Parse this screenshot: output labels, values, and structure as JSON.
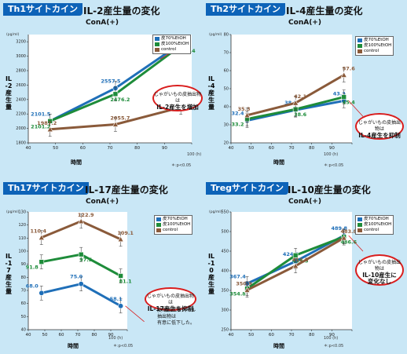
{
  "colors": {
    "blue": "#1f6fb8",
    "green": "#1e8c3a",
    "brown": "#8a5a3a",
    "red": "#d91e1e",
    "tag": "#0d63b8"
  },
  "panels": [
    {
      "tag": "Th1サイトカイン",
      "title": "IL-2産生量の変化",
      "conc": "ConA(+)",
      "ylabel": "IL-2産生量",
      "unit": "(pg/ml)",
      "xlabel": "時間",
      "xunit": "100 (h)",
      "pnote": "＊:p<0.05",
      "legend": [
        "皮70%EtOH",
        "皮100%EtOH",
        "control"
      ],
      "note": {
        "line1": "じゃがいもの皮抽出物は",
        "line2": "IL-2産生を増加"
      },
      "chart_data": {
        "type": "line",
        "x": [
          48,
          72,
          96
        ],
        "xlim": [
          40,
          100
        ],
        "xticks": [
          40,
          50,
          60,
          70,
          80,
          90,
          100
        ],
        "ylim": [
          1800,
          3300
        ],
        "yticks": [
          1800,
          2000,
          2200,
          2400,
          2600,
          2800,
          3000,
          3200
        ],
        "series": [
          {
            "name": "皮70%EtOH",
            "color": "#1f6fb8",
            "marker": "circle",
            "values": [
              2101.5,
              2557.5,
              3176.9
            ],
            "labels": [
              "2101.5",
              "2557.5",
              "3176.9"
            ]
          },
          {
            "name": "皮100%EtOH",
            "color": "#1e8c3a",
            "marker": "square",
            "values": [
              2101.2,
              2476.2,
              3145.4
            ],
            "labels": [
              "2101.2",
              "2476.2",
              "3145.4"
            ]
          },
          {
            "name": "control",
            "color": "#8a5a3a",
            "marker": "triangle",
            "values": [
              1987.2,
              2055.7,
              2291.5
            ],
            "labels": [
              "1987.2",
              "2055.7",
              "2291.5"
            ]
          }
        ]
      }
    },
    {
      "tag": "Th2サイトカイン",
      "title": "IL-4産生量の変化",
      "conc": "ConA(+)",
      "ylabel": "IL-4産生量",
      "unit": "(pg/ml)",
      "xlabel": "時間",
      "xunit": "100 (h)",
      "pnote": "＊:p<0.05",
      "legend": [
        "皮70%EtOH",
        "皮100%EtOH",
        "control"
      ],
      "note": {
        "line1": "じゃがいもの皮抽出物は",
        "line2": "IL-4産生を抑制"
      },
      "chart_data": {
        "type": "line",
        "x": [
          48,
          72,
          96
        ],
        "xlim": [
          40,
          100
        ],
        "xticks": [
          40,
          50,
          60,
          70,
          80,
          90,
          100
        ],
        "ylim": [
          20,
          80
        ],
        "yticks": [
          20,
          30,
          40,
          50,
          60,
          70,
          80
        ],
        "series": [
          {
            "name": "皮70%EtOH",
            "color": "#1f6fb8",
            "marker": "circle",
            "values": [
              32.4,
              38.2,
              43.3
            ],
            "labels": [
              "32.4",
              "38.2",
              "43.3"
            ]
          },
          {
            "name": "皮100%EtOH",
            "color": "#1e8c3a",
            "marker": "square",
            "values": [
              33.2,
              38.6,
              45.4
            ],
            "labels": [
              "33.2",
              "38.6",
              "45.4"
            ]
          },
          {
            "name": "control",
            "color": "#8a5a3a",
            "marker": "triangle",
            "values": [
              35.3,
              42.1,
              57.6
            ],
            "labels": [
              "35.3",
              "42.1",
              "57.6"
            ]
          }
        ]
      }
    },
    {
      "tag": "Th17サイトカイン",
      "title": "IL-17産生量の変化",
      "conc": "ConA(+)",
      "ylabel": "IL-17産生量",
      "unit": "(pg/ml)",
      "xlabel": "時間",
      "xunit": "100 (h)",
      "pnote": "＊:p<0.05",
      "legend": [
        "皮70%EtOH",
        "皮100%EtOH",
        "control"
      ],
      "note": {
        "line1": "じゃがいもの皮抽出物は",
        "line2": "IL-17産生を抑制"
      },
      "extra_note": [
        "皮70%エタノール",
        "抽出物は",
        "有意に低下した。"
      ],
      "chart_data": {
        "type": "line",
        "x": [
          48,
          72,
          96
        ],
        "xlim": [
          40,
          100
        ],
        "xticks": [
          40,
          50,
          60,
          70,
          80,
          90,
          100
        ],
        "ylim": [
          40,
          130
        ],
        "yticks": [
          40,
          50,
          60,
          70,
          80,
          90,
          100,
          110,
          120,
          130
        ],
        "series": [
          {
            "name": "皮70%EtOH",
            "color": "#1f6fb8",
            "marker": "circle",
            "values": [
              68.0,
              75.0,
              58.1
            ],
            "labels": [
              "68.0",
              "75.0",
              "58.1"
            ]
          },
          {
            "name": "皮100%EtOH",
            "color": "#1e8c3a",
            "marker": "square",
            "values": [
              91.8,
              97.5,
              81.1
            ],
            "labels": [
              "91.8",
              "97.5",
              "81.1"
            ]
          },
          {
            "name": "control",
            "color": "#8a5a3a",
            "marker": "triangle",
            "values": [
              110.4,
              122.9,
              109.1
            ],
            "labels": [
              "110.4",
              "122.9",
              "109.1"
            ]
          }
        ]
      }
    },
    {
      "tag": "Tregサイトカイン",
      "title": "IL-10産生量の変化",
      "conc": "ConA(+)",
      "ylabel": "IL-10産生量",
      "unit": "(pg/ml)",
      "xlabel": "時間",
      "xunit": "100 (h)",
      "pnote": "＊:p<0.05",
      "legend": [
        "皮70%EtOH",
        "皮100%EtOH",
        "control"
      ],
      "note": {
        "line1": "じゃがいもの皮抽出物は",
        "line2": "IL-10産生に",
        "line3": "変化なし"
      },
      "chart_data": {
        "type": "line",
        "x": [
          48,
          72,
          96
        ],
        "xlim": [
          40,
          100
        ],
        "xticks": [
          40,
          50,
          60,
          70,
          80,
          90,
          100
        ],
        "ylim": [
          250,
          550
        ],
        "yticks": [
          250,
          300,
          350,
          400,
          450,
          500,
          550
        ],
        "series": [
          {
            "name": "皮70%EtOH",
            "color": "#1f6fb8",
            "marker": "circle",
            "values": [
              367.4,
              424.0,
              489.8
            ],
            "labels": [
              "367.4",
              "424.0",
              "489.8"
            ]
          },
          {
            "name": "皮100%EtOH",
            "color": "#1e8c3a",
            "marker": "square",
            "values": [
              354.8,
              439.5,
              486.6
            ],
            "labels": [
              "354.8",
              "439.5",
              "486.6"
            ]
          },
          {
            "name": "control",
            "color": "#8a5a3a",
            "marker": "triangle",
            "values": [
              350.9,
              412.5,
              483.8
            ],
            "labels": [
              "350.9",
              "412.5",
              "483.8"
            ]
          }
        ]
      }
    }
  ]
}
